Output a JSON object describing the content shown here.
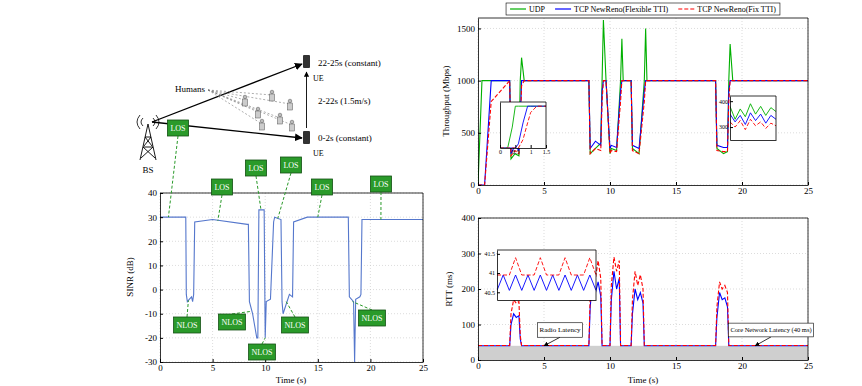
{
  "diagram": {
    "bs_label": "BS",
    "ue_labels": [
      "UE",
      "UE"
    ],
    "humans_label": "Humans",
    "segment_labels": [
      "22-25s (constant)",
      "2-22s (1.5m/s)",
      "0-2s (constant)"
    ]
  },
  "chart_data": [
    {
      "type": "line",
      "x_label": "Time (s)",
      "y_label": "SINR (dB)",
      "x": [
        0,
        2.45,
        2.5,
        2.6,
        2.8,
        3.0,
        3.1,
        3.2,
        3.3,
        5,
        8.3,
        8.4,
        8.5,
        8.8,
        9.2,
        9.3,
        9.4,
        9.9,
        10.0,
        10.1,
        10.5,
        10.8,
        10.9,
        11.5,
        11.6,
        11.7,
        12.3,
        12.6,
        12.7,
        14,
        17.8,
        17.9,
        18.0,
        18.4,
        18.5,
        18.6,
        19.0,
        19.1,
        19.2,
        22,
        25
      ],
      "series": [
        {
          "color": "#5577cc",
          "line_style": "solid",
          "values": [
            30,
            30,
            -2,
            -5,
            -4,
            -3,
            -5,
            -2,
            28,
            29,
            27,
            27,
            -5,
            -10,
            -20,
            -20,
            33,
            33,
            -20,
            -5,
            -4,
            28,
            30,
            29,
            -5,
            -10,
            -2,
            -3,
            28,
            30,
            30,
            30,
            -3,
            -5,
            -30,
            -4,
            -3,
            -2,
            29,
            29,
            29
          ]
        }
      ],
      "xlim": [
        0,
        25
      ],
      "ylim": [
        -30,
        40
      ],
      "xticks": [
        0,
        5,
        10,
        15,
        20,
        25
      ],
      "yticks": [
        -30,
        -20,
        -10,
        0,
        10,
        20,
        30,
        40
      ],
      "grid": true,
      "annotations": [
        {
          "text": "LOS",
          "x": 0.8,
          "y": 30
        },
        {
          "text": "LOS",
          "x": 5.5,
          "y": 28.5
        },
        {
          "text": "LOS",
          "x": 9.6,
          "y": 33
        },
        {
          "text": "LOS",
          "x": 11.2,
          "y": 29.5
        },
        {
          "text": "LOS",
          "x": 15,
          "y": 30
        },
        {
          "text": "LOS",
          "x": 21,
          "y": 29
        },
        {
          "text": "NLOS",
          "x": 2.7,
          "y": -4.5
        },
        {
          "text": "NLOS",
          "x": 8.7,
          "y": -9
        },
        {
          "text": "NLOS",
          "x": 10.0,
          "y": -20
        },
        {
          "text": "NLOS",
          "x": 12,
          "y": -5
        },
        {
          "text": "NLOS",
          "x": 18.3,
          "y": -5
        }
      ]
    },
    {
      "type": "line",
      "y_label": "Throughput (Mbps)",
      "x": [
        0,
        0.3,
        0.5,
        1,
        2.4,
        2.5,
        2.8,
        3.1,
        3.2,
        3.3,
        3.5,
        8.4,
        8.5,
        8.9,
        9.3,
        9.4,
        9.5,
        9.7,
        10.0,
        10.1,
        10.5,
        10.8,
        10.9,
        11.0,
        11.2,
        11.6,
        11.7,
        12.2,
        12.6,
        12.7,
        12.8,
        13.0,
        18.0,
        18.1,
        18.6,
        18.9,
        19.0,
        19.1,
        19.3,
        25
      ],
      "series": [
        {
          "name": "UDP",
          "color": "#00b000",
          "line_style": "solid",
          "values": [
            0,
            1000,
            1000,
            1000,
            1000,
            250,
            300,
            280,
            1000,
            1220,
            1000,
            1000,
            300,
            350,
            400,
            1000,
            1580,
            1000,
            300,
            350,
            330,
            1000,
            1400,
            1000,
            1000,
            1000,
            350,
            300,
            1000,
            1500,
            1000,
            1000,
            1000,
            350,
            300,
            320,
            1000,
            1350,
            1000,
            1000
          ]
        },
        {
          "name": "TCP NewReno(Flexible TTI)",
          "color": "#0000ff",
          "line_style": "solid",
          "values": [
            0,
            0,
            0,
            1000,
            1000,
            300,
            380,
            330,
            600,
            1000,
            1000,
            1000,
            350,
            420,
            380,
            900,
            1000,
            1000,
            350,
            380,
            360,
            900,
            1000,
            1000,
            1000,
            1000,
            380,
            350,
            900,
            1000,
            1000,
            1000,
            1000,
            380,
            360,
            360,
            900,
            1000,
            1000,
            1000
          ]
        },
        {
          "name": "TCP NewReno(Fix TTI)",
          "color": "#ff0000",
          "line_style": "dashed",
          "values": [
            0,
            0,
            0,
            800,
            1000,
            280,
            330,
            300,
            500,
            950,
            1000,
            1000,
            300,
            350,
            330,
            800,
            1000,
            1000,
            300,
            330,
            320,
            800,
            1000,
            1000,
            1000,
            1000,
            330,
            300,
            800,
            1000,
            1000,
            1000,
            1000,
            330,
            320,
            320,
            800,
            1000,
            1000,
            1000
          ]
        }
      ],
      "xlim": [
        0,
        25
      ],
      "ylim": [
        0,
        1600
      ],
      "xticks": [
        0,
        5,
        10,
        15,
        20,
        25
      ],
      "yticks": [
        0,
        500,
        1000,
        1500
      ],
      "grid": true,
      "legend": "top"
    },
    {
      "type": "line",
      "x_label": "Time (s)",
      "y_label": "RTT (ms)",
      "x": [
        0,
        2.4,
        2.5,
        2.7,
        2.9,
        3.1,
        3.2,
        3.3,
        8.4,
        8.5,
        8.7,
        8.9,
        9.1,
        9.3,
        9.4,
        10.0,
        10.1,
        10.3,
        10.5,
        10.7,
        10.8,
        11.6,
        11.7,
        11.9,
        12.1,
        12.3,
        12.5,
        12.6,
        18.0,
        18.1,
        18.3,
        18.5,
        18.7,
        18.9,
        19.0,
        25
      ],
      "series": [
        {
          "color": "#0000ff",
          "line_style": "solid",
          "values": [
            40,
            40,
            100,
            130,
            120,
            125,
            60,
            40,
            40,
            150,
            230,
            190,
            220,
            180,
            40,
            40,
            170,
            250,
            200,
            230,
            40,
            40,
            130,
            200,
            170,
            190,
            160,
            40,
            40,
            120,
            190,
            170,
            175,
            150,
            40,
            40
          ]
        },
        {
          "color": "#ff0000",
          "line_style": "dashed",
          "values": [
            41,
            41,
            130,
            170,
            160,
            165,
            70,
            41,
            41,
            180,
            270,
            230,
            280,
            230,
            41,
            41,
            210,
            290,
            250,
            280,
            41,
            41,
            170,
            250,
            210,
            240,
            200,
            41,
            41,
            150,
            220,
            200,
            210,
            190,
            41,
            41
          ]
        }
      ],
      "xlim": [
        0,
        25
      ],
      "ylim": [
        0,
        400
      ],
      "xticks": [
        0,
        5,
        10,
        15,
        20,
        25
      ],
      "yticks": [
        0,
        100,
        200,
        300,
        400
      ],
      "grid": true,
      "annotations": [
        {
          "text": "Radio Latency",
          "x": 5,
          "y": 40
        },
        {
          "text": "Core Network Latency (40 ms)",
          "x": 21,
          "y": 40
        }
      ]
    },
    {
      "type": "line",
      "x": [
        0,
        0.25,
        0.4,
        0.5,
        0.6,
        0.75,
        0.9,
        1.0,
        1.2,
        1.5
      ],
      "series": [
        {
          "color": "#00b000",
          "line_style": "solid",
          "values": [
            0,
            0,
            500,
            1000,
            1000,
            1000,
            1000,
            1000,
            1000,
            1000
          ]
        },
        {
          "color": "#0000ff",
          "line_style": "solid",
          "values": [
            0,
            0,
            0,
            0,
            100,
            600,
            1000,
            1000,
            1000,
            1000
          ]
        },
        {
          "color": "#ff0000",
          "line_style": "dashed",
          "values": [
            0,
            0,
            0,
            0,
            0,
            200,
            600,
            850,
            1000,
            1000
          ]
        }
      ],
      "xlim": [
        0,
        1.5
      ],
      "ylim": [
        0,
        1100
      ],
      "xticks": [
        0,
        0.5,
        1,
        1.5
      ],
      "tick_labels": "x"
    },
    {
      "type": "line",
      "x": [
        9.9,
        10.0,
        10.1,
        10.2,
        10.3,
        10.4,
        10.5,
        10.6,
        10.7,
        10.8
      ],
      "series": [
        {
          "color": "#00b000",
          "line_style": "solid",
          "values": [
            380,
            330,
            370,
            340,
            390,
            350,
            380,
            345,
            375,
            360
          ]
        },
        {
          "color": "#0000ff",
          "line_style": "solid",
          "values": [
            350,
            320,
            345,
            310,
            355,
            325,
            350,
            315,
            345,
            330
          ]
        },
        {
          "color": "#ff0000",
          "line_style": "dashed",
          "values": [
            320,
            300,
            325,
            290,
            330,
            305,
            320,
            295,
            315,
            305
          ]
        }
      ],
      "xlim": [
        9.9,
        10.8
      ],
      "ylim": [
        250,
        420
      ],
      "yticks": [
        300,
        400
      ],
      "tick_labels": "y"
    },
    {
      "type": "line",
      "x": [
        4.0,
        4.1,
        4.2,
        4.3,
        4.4,
        4.5,
        4.6,
        4.7,
        4.8,
        4.9,
        5.0,
        5.1,
        5.2,
        5.3,
        5.4,
        5.5,
        5.6
      ],
      "series": [
        {
          "color": "#0000ff",
          "line_style": "solid",
          "values": [
            40.55,
            40.95,
            40.55,
            40.95,
            40.55,
            40.95,
            40.55,
            40.95,
            40.55,
            40.95,
            40.55,
            40.95,
            40.55,
            40.95,
            40.55,
            40.95,
            40.55
          ]
        },
        {
          "color": "#ff0000",
          "line_style": "dashed",
          "values": [
            40.95,
            40.95,
            40.95,
            41.4,
            40.95,
            40.95,
            40.95,
            41.4,
            40.95,
            40.95,
            40.95,
            41.4,
            40.95,
            40.95,
            40.95,
            41.4,
            40.95
          ]
        }
      ],
      "xlim": [
        4,
        5.6
      ],
      "ylim": [
        40.3,
        41.6
      ],
      "yticks": [
        40.5,
        41,
        41.5
      ],
      "tick_labels": "y"
    }
  ]
}
